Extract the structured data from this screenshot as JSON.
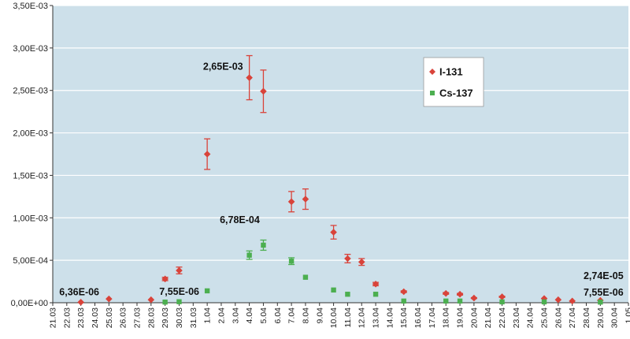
{
  "chart_data": {
    "type": "scatter",
    "title": "",
    "xlabel": "",
    "ylabel": "",
    "ylim": [
      0,
      0.0035
    ],
    "y_ticks": [
      0,
      0.0005,
      0.001,
      0.0015,
      0.002,
      0.0025,
      0.003,
      0.0035
    ],
    "y_tick_labels": [
      "0,00E+00",
      "5,00E-04",
      "1,00E-03",
      "1,50E-03",
      "2,00E-03",
      "2,50E-03",
      "3,00E-03",
      "3,50E-03"
    ],
    "x_tick_labels": [
      "21.03",
      "22.03",
      "23.03",
      "24.03",
      "25.03",
      "26.03",
      "27.03",
      "28.03",
      "29.03",
      "30.03",
      "31.03",
      "1.04",
      "2.04",
      "3.04",
      "4.04",
      "5.04",
      "6.04",
      "7.04",
      "8.04",
      "9.04",
      "10.04",
      "11.04",
      "12.04",
      "13.04",
      "14.04",
      "15.04",
      "16.04",
      "17.04",
      "18.04",
      "19.04",
      "20.04",
      "21.04",
      "22.04",
      "23.04",
      "24.04",
      "25.04",
      "26.04",
      "27.04",
      "28.04",
      "29.04",
      "30.04",
      "1.05"
    ],
    "grid": "horizontal",
    "legend_position": "right-upper",
    "background_color": "#cde0ea",
    "series": [
      {
        "name": "I-131",
        "color": "#d9433a",
        "marker": "diamond",
        "points": [
          {
            "x": "23.03",
            "y": 6.36e-06,
            "err": 0
          },
          {
            "x": "25.03",
            "y": 4.5e-05,
            "err": 0
          },
          {
            "x": "28.03",
            "y": 3.5e-05,
            "err": 0
          },
          {
            "x": "29.03",
            "y": 0.00028,
            "err": 2e-05
          },
          {
            "x": "30.03",
            "y": 0.00038,
            "err": 4e-05
          },
          {
            "x": "1.04",
            "y": 0.00175,
            "err": 0.00018
          },
          {
            "x": "4.04",
            "y": 0.00265,
            "err": 0.00026
          },
          {
            "x": "5.04",
            "y": 0.00249,
            "err": 0.00025
          },
          {
            "x": "7.04",
            "y": 0.00119,
            "err": 0.00012
          },
          {
            "x": "8.04",
            "y": 0.00122,
            "err": 0.00012
          },
          {
            "x": "10.04",
            "y": 0.00083,
            "err": 8e-05
          },
          {
            "x": "11.04",
            "y": 0.00052,
            "err": 5e-05
          },
          {
            "x": "12.04",
            "y": 0.00048,
            "err": 4e-05
          },
          {
            "x": "13.04",
            "y": 0.00022,
            "err": 2e-05
          },
          {
            "x": "15.04",
            "y": 0.00013,
            "err": 1e-05
          },
          {
            "x": "18.04",
            "y": 0.00011,
            "err": 1e-05
          },
          {
            "x": "19.04",
            "y": 0.0001,
            "err": 1e-05
          },
          {
            "x": "20.04",
            "y": 5.5e-05,
            "err": 5e-06
          },
          {
            "x": "22.04",
            "y": 7e-05,
            "err": 7e-06
          },
          {
            "x": "25.04",
            "y": 5e-05,
            "err": 0
          },
          {
            "x": "26.04",
            "y": 3.5e-05,
            "err": 0
          },
          {
            "x": "27.04",
            "y": 2e-05,
            "err": 0
          },
          {
            "x": "29.04",
            "y": 2.74e-05,
            "err": 0
          }
        ]
      },
      {
        "name": "Cs-137",
        "color": "#4caf50",
        "marker": "square",
        "points": [
          {
            "x": "29.03",
            "y": 7.55e-06,
            "err": 0
          },
          {
            "x": "30.03",
            "y": 1.2e-05,
            "err": 0
          },
          {
            "x": "1.04",
            "y": 0.00014,
            "err": 0
          },
          {
            "x": "4.04",
            "y": 0.00056,
            "err": 5e-05
          },
          {
            "x": "5.04",
            "y": 0.000678,
            "err": 6e-05
          },
          {
            "x": "7.04",
            "y": 0.00049,
            "err": 4e-05
          },
          {
            "x": "8.04",
            "y": 0.0003,
            "err": 0
          },
          {
            "x": "10.04",
            "y": 0.00015,
            "err": 0
          },
          {
            "x": "11.04",
            "y": 0.0001,
            "err": 0
          },
          {
            "x": "13.04",
            "y": 0.0001,
            "err": 0
          },
          {
            "x": "15.04",
            "y": 2e-05,
            "err": 0
          },
          {
            "x": "18.04",
            "y": 2e-05,
            "err": 0
          },
          {
            "x": "19.04",
            "y": 2e-05,
            "err": 0
          },
          {
            "x": "22.04",
            "y": 1e-05,
            "err": 0
          },
          {
            "x": "25.04",
            "y": 1e-05,
            "err": 0
          },
          {
            "x": "29.04",
            "y": 7.55e-06,
            "err": 0
          }
        ]
      }
    ],
    "annotations": [
      {
        "text": "2,65E-03",
        "x": "4.04",
        "y": 0.00265,
        "side": "left"
      },
      {
        "text": "6,78E-04",
        "x": "5.04",
        "y": 0.000678,
        "side": "above-left"
      },
      {
        "text": "6,36E-06",
        "x": "23.03",
        "y": 6.36e-06,
        "side": "above"
      },
      {
        "text": "7,55E-06",
        "x": "29.03",
        "y": 7.55e-06,
        "side": "above"
      },
      {
        "text": "2,74E-05",
        "x": "29.04",
        "y": 2.74e-05,
        "side": "above-high"
      },
      {
        "text": "7,55E-06",
        "x": "29.04",
        "y": 7.55e-06,
        "side": "above"
      }
    ]
  }
}
